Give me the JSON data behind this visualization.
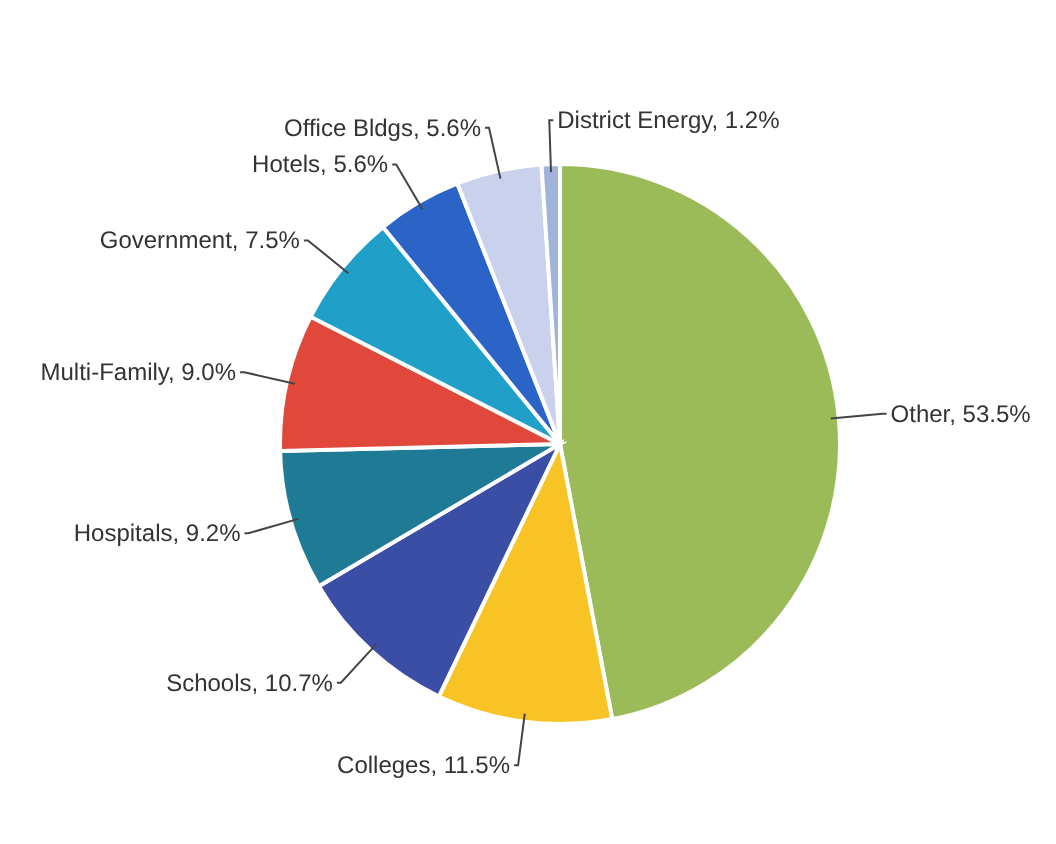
{
  "chart_data": {
    "type": "pie",
    "categories": [
      "Other",
      "Colleges",
      "Schools",
      "Hospitals",
      "Multi-Family",
      "Government",
      "Hotels",
      "Office Bldgs",
      "District Energy"
    ],
    "value_labels": [
      "53.5%",
      "11.5%",
      "10.7%",
      "9.2%",
      "9.0%",
      "7.5%",
      "5.6%",
      "5.6%",
      "1.2%"
    ],
    "values": [
      53.5,
      11.5,
      10.7,
      9.2,
      9.0,
      7.5,
      5.6,
      5.6,
      1.2
    ],
    "colors": [
      "#9bbb59",
      "#f7c325",
      "#3b4ea6",
      "#1f7a96",
      "#e0483c",
      "#20a0c8",
      "#2b63c6",
      "#c9d1ec",
      "#9fb4d8"
    ],
    "data_labels": true
  }
}
